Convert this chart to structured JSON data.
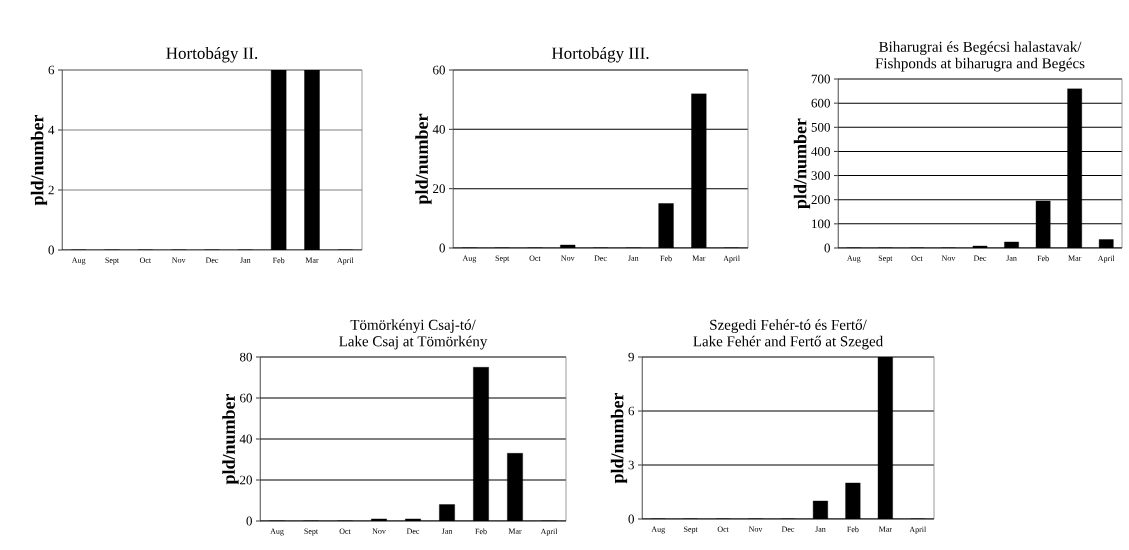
{
  "chart_data": [
    {
      "type": "bar",
      "title": "Hortobágy II.",
      "ylabel": "pld/number",
      "categories": [
        "Aug",
        "Sept",
        "Oct",
        "Nov",
        "Dec",
        "Jan",
        "Feb",
        "Mar",
        "April"
      ],
      "values": [
        0,
        0,
        0,
        0,
        0,
        0,
        6,
        6,
        0
      ],
      "color": "#000000",
      "ylim": [
        0,
        6
      ],
      "yticks": [
        0,
        2,
        4,
        6
      ],
      "grid": "y"
    },
    {
      "type": "bar",
      "title": "Hortobágy III.",
      "ylabel": "pld/number",
      "categories": [
        "Aug",
        "Sept",
        "Oct",
        "Nov",
        "Dec",
        "Jan",
        "Feb",
        "Mar",
        "April"
      ],
      "values": [
        0,
        0,
        0,
        1,
        0,
        0,
        15,
        52,
        0
      ],
      "color": "#000000",
      "ylim": [
        0,
        60
      ],
      "yticks": [
        0,
        20,
        40,
        60
      ],
      "grid": "y"
    },
    {
      "type": "bar",
      "title": "Biharugrai és Begécsi halastavak/",
      "subtitle": "Fishponds at biharugra and Begécs",
      "ylabel": "pld/number",
      "categories": [
        "Aug",
        "Sept",
        "Oct",
        "Nov",
        "Dec",
        "Jan",
        "Feb",
        "Mar",
        "April"
      ],
      "values": [
        0,
        0,
        0,
        0,
        8,
        25,
        195,
        660,
        35
      ],
      "color": "#000000",
      "ylim": [
        0,
        700
      ],
      "yticks": [
        0,
        100,
        200,
        300,
        400,
        500,
        600,
        700
      ],
      "grid": "y"
    },
    {
      "type": "bar",
      "title": "Tömörkényi Csaj-tó/",
      "subtitle": "Lake Csaj at Tömörkény",
      "ylabel": "pld/number",
      "categories": [
        "Aug",
        "Sept",
        "Oct",
        "Nov",
        "Dec",
        "Jan",
        "Feb",
        "Mar",
        "April"
      ],
      "values": [
        0,
        0,
        0,
        1,
        1,
        8,
        75,
        33,
        0
      ],
      "color": "#000000",
      "ylim": [
        0,
        80
      ],
      "yticks": [
        0,
        20,
        40,
        60,
        80
      ],
      "grid": "y"
    },
    {
      "type": "bar",
      "title": "Szegedi Fehér-tó és Fertő/",
      "subtitle": "Lake Fehér and Fertő at Szeged",
      "ylabel": "pld/number",
      "categories": [
        "Aug",
        "Sept",
        "Oct",
        "Nov",
        "Dec",
        "Jan",
        "Feb",
        "Mar",
        "April"
      ],
      "values": [
        0,
        0,
        0,
        0,
        0,
        1,
        2,
        9,
        0
      ],
      "color": "#000000",
      "ylim": [
        0,
        9
      ],
      "yticks": [
        0,
        3,
        6,
        9
      ],
      "grid": "y"
    }
  ]
}
